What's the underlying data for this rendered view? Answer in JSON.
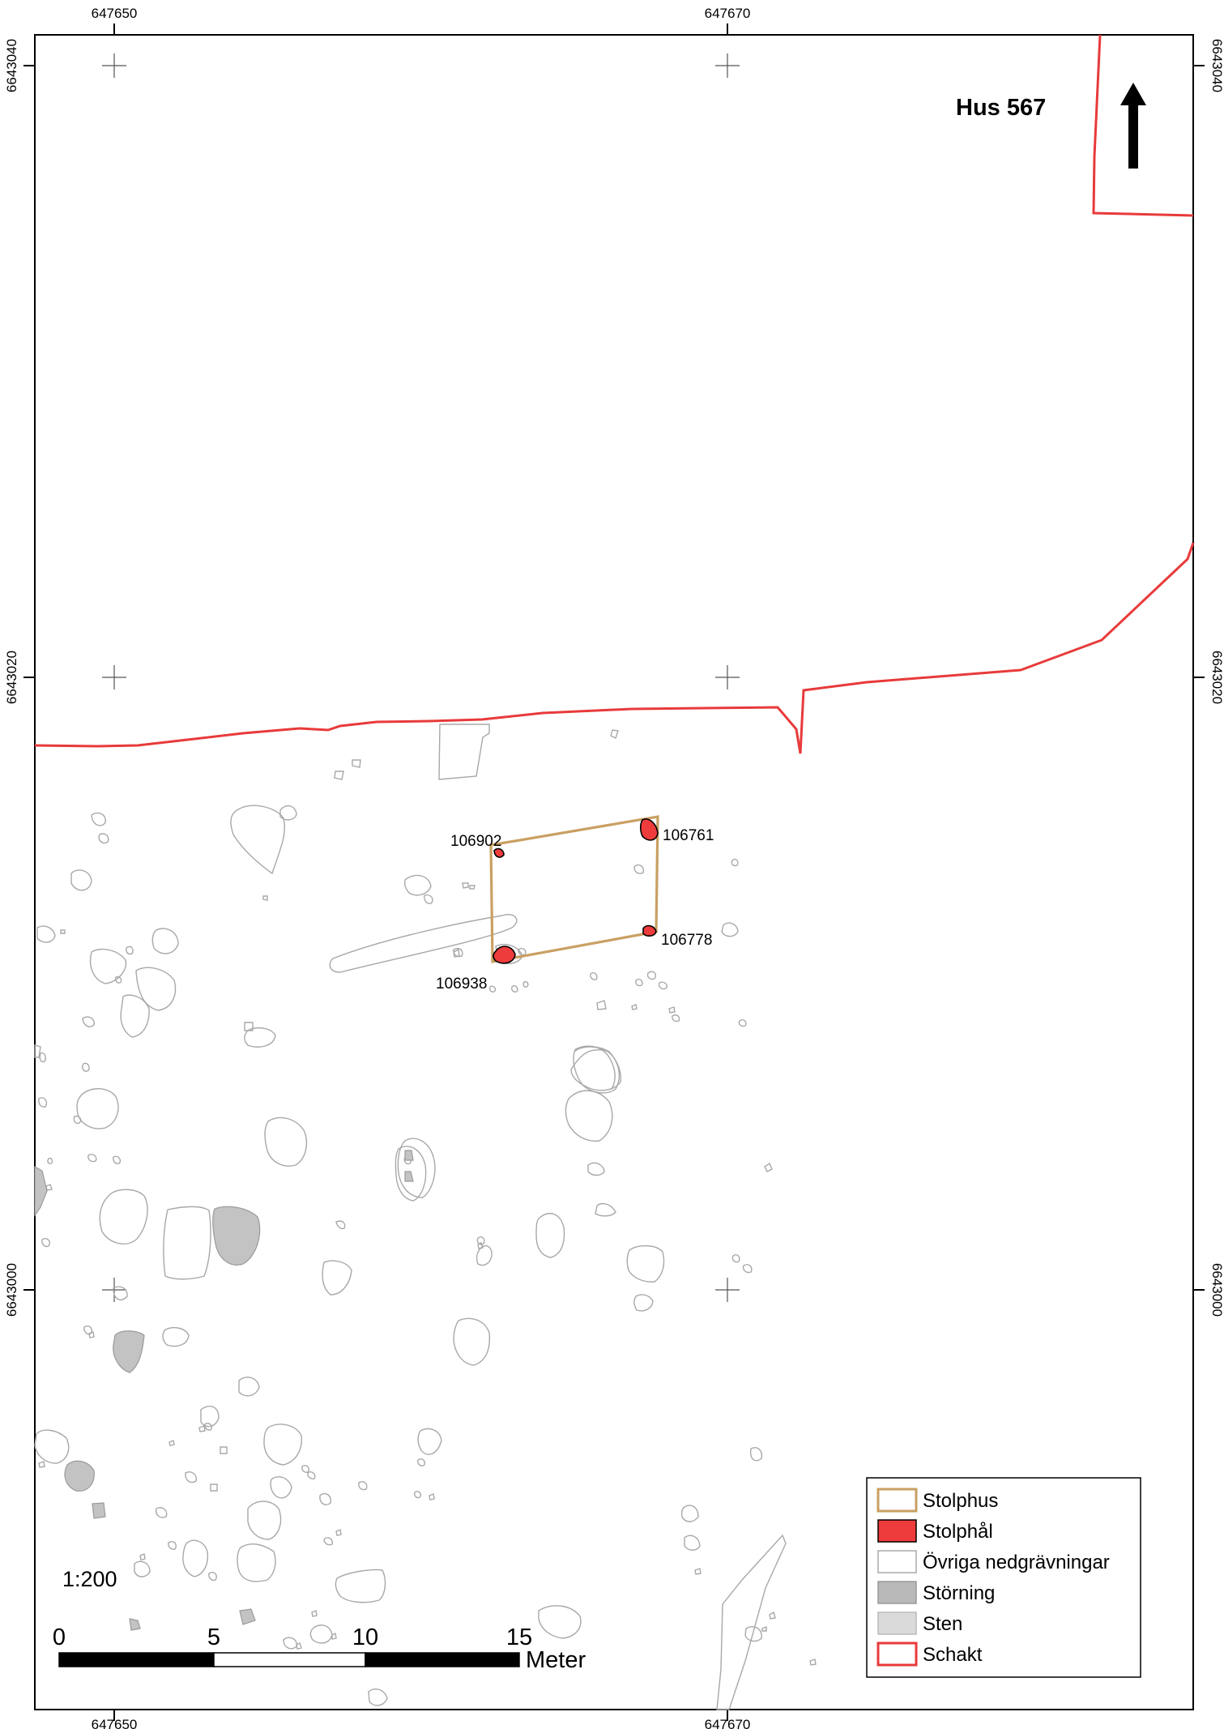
{
  "title": "Hus 567",
  "scale_ratio": "1:200",
  "coordinates": {
    "top_x": [
      "647650",
      "647670"
    ],
    "bottom_x": [
      "647650",
      "647670"
    ],
    "left_y": [
      "6643040",
      "6643020",
      "6643000"
    ],
    "right_y": [
      "6643040",
      "6643020",
      "6643000"
    ]
  },
  "postholes": [
    {
      "id": "106902"
    },
    {
      "id": "106761"
    },
    {
      "id": "106778"
    },
    {
      "id": "106938"
    }
  ],
  "scale_bar": {
    "ticks": [
      "0",
      "5",
      "10",
      "15"
    ],
    "unit": "Meter"
  },
  "legend": {
    "items": [
      {
        "label": "Stolphus",
        "fill": "#ffffff",
        "stroke": "#c9a063"
      },
      {
        "label": "Stolphål",
        "fill": "#ee3b3b",
        "stroke": "#000000"
      },
      {
        "label": "Övriga nedgrävningar",
        "fill": "#ffffff",
        "stroke": "#aaaaaa"
      },
      {
        "label": "Störning",
        "fill": "#b9b9b9",
        "stroke": "#999999"
      },
      {
        "label": "Sten",
        "fill": "#dadada",
        "stroke": "#bbbbbb"
      },
      {
        "label": "Schakt",
        "fill": "#ffffff",
        "stroke": "#e83a3a"
      }
    ]
  },
  "colors": {
    "schakt": "#e83a3a",
    "stolphus": "#c9a063",
    "stolphal": "#ee3b3b",
    "feature_outline": "#a8a8a8"
  },
  "north_arrow_icon": "north-arrow-icon"
}
